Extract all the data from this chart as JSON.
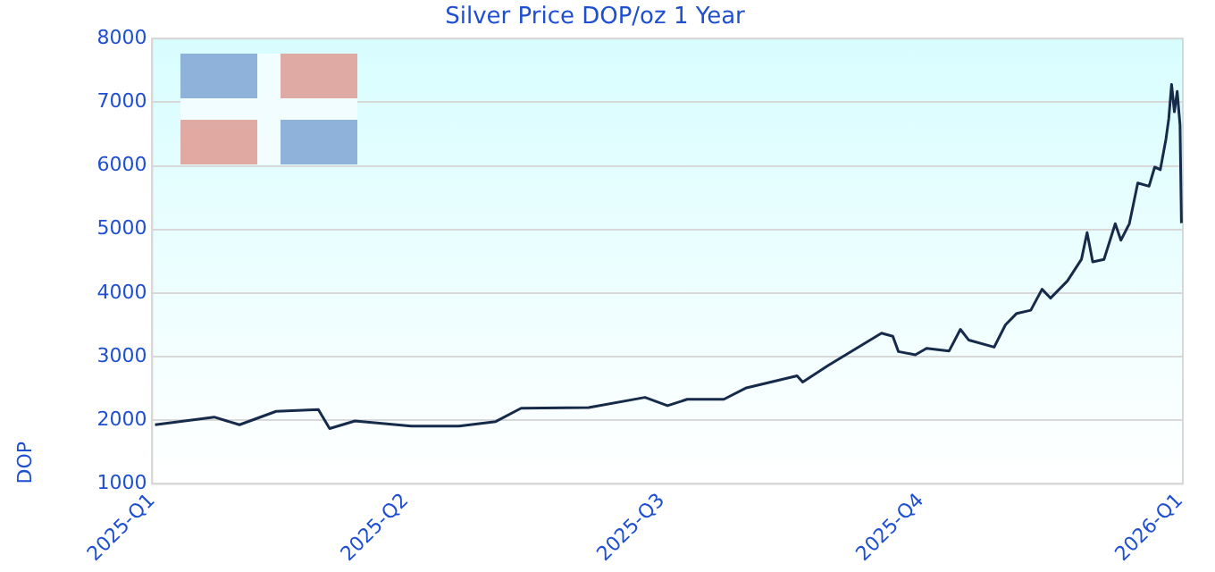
{
  "chart_data": {
    "type": "line",
    "title": "Silver Price DOP/oz 1 Year",
    "ylabel": "DOP",
    "xlim": [
      "2025-01-01",
      "2026-01-02"
    ],
    "xticks": [
      {
        "value": "2025-01-01",
        "label": "2025-Q1"
      },
      {
        "value": "2025-04-01",
        "label": "2025-Q2"
      },
      {
        "value": "2025-07-01",
        "label": "2025-Q3"
      },
      {
        "value": "2025-10-01",
        "label": "2025-Q4"
      },
      {
        "value": "2026-01-01",
        "label": "2026-Q1"
      }
    ],
    "ylim": [
      1000,
      8000
    ],
    "yticks": [
      1000,
      2000,
      3000,
      4000,
      5000,
      6000,
      7000,
      8000
    ],
    "grid": "y",
    "marker": "none",
    "line_style": "solid",
    "series": [
      {
        "color": "#162a4a",
        "x": [
          "2025-01-02",
          "2025-01-23",
          "2025-02-01",
          "2025-02-14",
          "2025-03-01",
          "2025-03-05",
          "2025-03-14",
          "2025-04-03",
          "2025-04-20",
          "2025-05-03",
          "2025-05-12",
          "2025-06-05",
          "2025-06-25",
          "2025-07-03",
          "2025-07-10",
          "2025-07-23",
          "2025-07-31",
          "2025-08-18",
          "2025-08-20",
          "2025-08-29",
          "2025-09-17",
          "2025-09-21",
          "2025-09-23",
          "2025-09-29",
          "2025-10-03",
          "2025-10-11",
          "2025-10-15",
          "2025-10-18",
          "2025-10-27",
          "2025-10-31",
          "2025-11-04",
          "2025-11-09",
          "2025-11-13",
          "2025-11-16",
          "2025-11-22",
          "2025-11-27",
          "2025-11-29",
          "2025-12-01",
          "2025-12-05",
          "2025-12-09",
          "2025-12-11",
          "2025-12-14",
          "2025-12-17",
          "2025-12-21",
          "2025-12-23",
          "2025-12-25",
          "2025-12-27",
          "2025-12-28",
          "2025-12-29",
          "2025-12-30",
          "2025-12-31",
          "2026-01-01",
          "2026-01-01T12:00"
        ],
        "values": [
          1930,
          2050,
          1930,
          2140,
          2170,
          1870,
          1990,
          1910,
          1910,
          1980,
          2190,
          2200,
          2360,
          2230,
          2330,
          2330,
          2510,
          2700,
          2600,
          2860,
          3370,
          3320,
          3080,
          3030,
          3130,
          3090,
          3430,
          3260,
          3150,
          3500,
          3680,
          3730,
          4060,
          3920,
          4190,
          4530,
          4950,
          4490,
          4530,
          5090,
          4830,
          5090,
          5730,
          5680,
          5980,
          5940,
          6420,
          6740,
          7280,
          6850,
          7170,
          6640,
          5100
        ]
      }
    ]
  }
}
